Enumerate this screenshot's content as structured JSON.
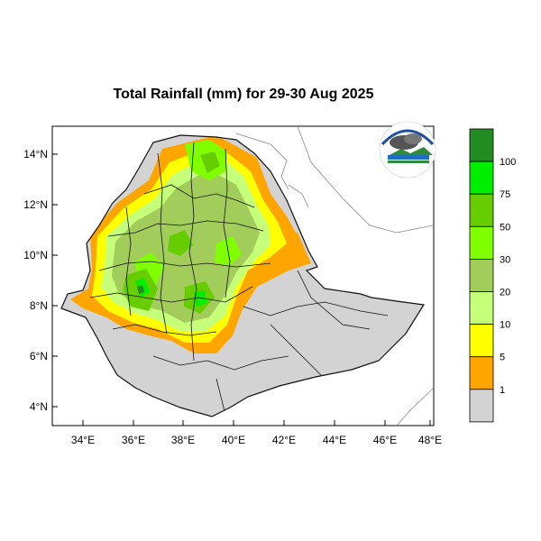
{
  "title": "Total Rainfall (mm) for 29-30 Aug 2025",
  "y_ticks": [
    "14°N",
    "12°N",
    "10°N",
    "8°N",
    "6°N",
    "4°N"
  ],
  "x_ticks": [
    "34°E",
    "36°E",
    "38°E",
    "40°E",
    "42°E",
    "44°E",
    "46°E",
    "48°E"
  ],
  "legend": {
    "labels": [
      "100",
      "75",
      "50",
      "30",
      "20",
      "10",
      "5",
      "1"
    ],
    "colors": [
      "#228B22",
      "#00EE00",
      "#66CD00",
      "#7FFF00",
      "#A2CD5A",
      "#C6FF7A",
      "#FFFF00",
      "#FFA500",
      "#D3D3D3"
    ]
  },
  "logo": {
    "name": "ethiopian-meteorology-institute-logo"
  }
}
